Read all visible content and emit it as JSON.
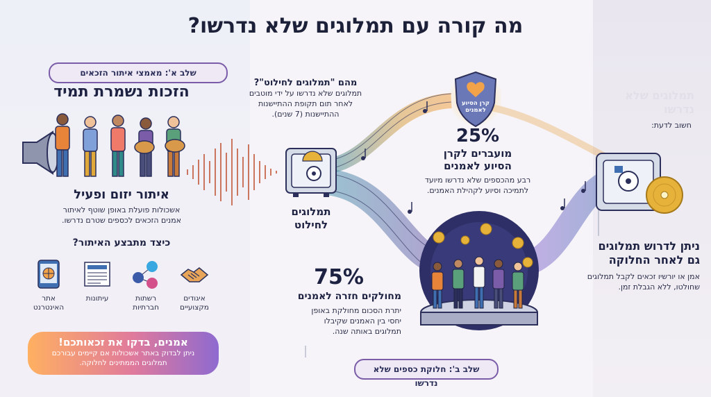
{
  "title": "מה קורה עם תמלוגים שלא נדרשו?",
  "stage_a": "שלב א': מאמצי איתור הזכאים",
  "stage_b": "שלב ב': חלוקת כספים שלא נדרשו",
  "rights": {
    "heading": "הזכות נשמרת תמיד"
  },
  "active_search": {
    "heading": "איתור יזום ופעיל",
    "body_line1": "אשכולות פועלת באופן שוטף לאיתור",
    "body_line2": "אמנים הזכאים לכספים שטרם נדרשו."
  },
  "how": {
    "heading": "כיצד מתבצע האיתור?",
    "channels": [
      {
        "label_l1": "איגודים",
        "label_l2": "מקצועיים",
        "icon": "handshake-icon"
      },
      {
        "label_l1": "רשתות",
        "label_l2": "חברתיות",
        "icon": "social-media-icon"
      },
      {
        "label_l1": "עיתונות",
        "label_l2": "",
        "icon": "newspaper-icon"
      },
      {
        "label_l1": "אתר",
        "label_l2": "האינטרנט",
        "icon": "website-icon"
      }
    ]
  },
  "callout": {
    "heading": "אמנים, בדקו את זכאותכם!",
    "body_line1": "ניתן לבדוק באתר אשכולות אם קיימים עבורכם",
    "body_line2": "תמלוגים הממתינים לחלוקה."
  },
  "definition": {
    "heading": "מהם \"תמלוגים לחילוט\"?",
    "l1": "תמלוגים שלא נדרשו על ידי מוטבים",
    "l2": "לאחר תום תקופת ההתיישנות",
    "l3": "ההתיישנות (7 שנים)."
  },
  "safe_label": {
    "l1": "תמלוגים",
    "l2": "לחילוט"
  },
  "shield": {
    "l1": "קרן",
    "l2": "הסיוע",
    "l3": "לאמנים"
  },
  "fund": {
    "percent": "25%",
    "h1": "מועברים לקרן",
    "h2": "הסיוע לאמנים",
    "l1": "רבע מהכספים שלא נדרשו מיועד",
    "l2": "לתמיכה וסיוע לקהילת האמנים."
  },
  "artists": {
    "percent": "75%",
    "h": "מחולקים חזרה לאמנים",
    "l1": "יתרת הסכום מחולקת באופן",
    "l2": "יחסי בין האמנים שקיבלו",
    "l3": "תמלוגים באותה שנה."
  },
  "good_to_know": {
    "label": "חשוב לדעת:",
    "faded": "תמלוגים שלא נדרשו"
  },
  "claim": {
    "h1": "ניתן לדרוש תמלוגים",
    "h2": "גם לאחר החלוקה",
    "l1": "אמן או יורשיו זכאים לקבל תמלוגים",
    "l2": "שחולטו, ללא הגבלת זמן."
  },
  "colors": {
    "purple": "#7a5ca8",
    "teal": "#3f8fa8",
    "orange": "#f2a34a",
    "navy": "#1e2242",
    "gold": "#e6b23a"
  }
}
